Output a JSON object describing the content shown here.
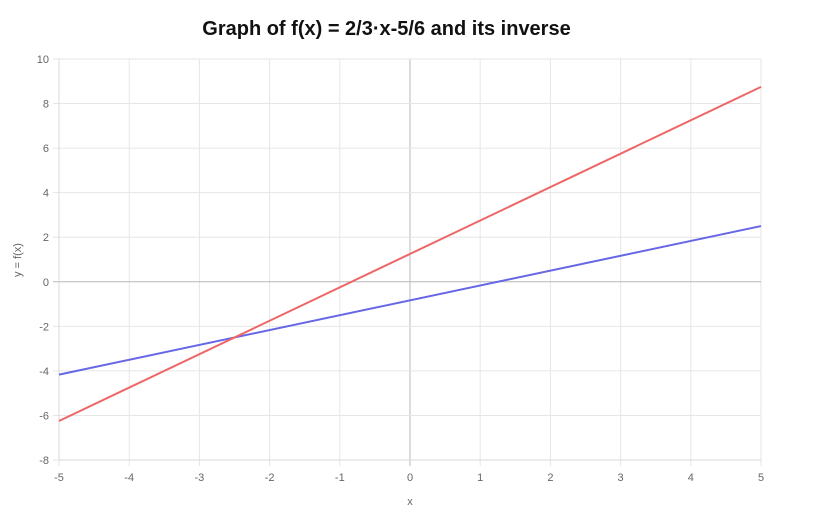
{
  "chart_data": {
    "type": "line",
    "title": "Graph of f(x) = 2/3·x-5/6 and its inverse",
    "xlabel": "x",
    "ylabel": "y = f(x)",
    "xlim": [
      -5,
      5
    ],
    "ylim": [
      -8,
      10
    ],
    "x_ticks": [
      "-5",
      "-4",
      "-3",
      "-2",
      "-1",
      "0",
      "1",
      "2",
      "3",
      "4",
      "5"
    ],
    "y_ticks": [
      "-8",
      "-6",
      "-4",
      "-2",
      "0",
      "2",
      "4",
      "6",
      "8",
      "10"
    ],
    "grid": true,
    "legend": "none",
    "series": [
      {
        "color": "#6666e6",
        "x": [
          -5,
          5
        ],
        "y": [
          -4.1667,
          2.5
        ]
      },
      {
        "color": "#ee6666",
        "x": [
          -5,
          5
        ],
        "y": [
          -6.25,
          8.75
        ]
      }
    ]
  }
}
